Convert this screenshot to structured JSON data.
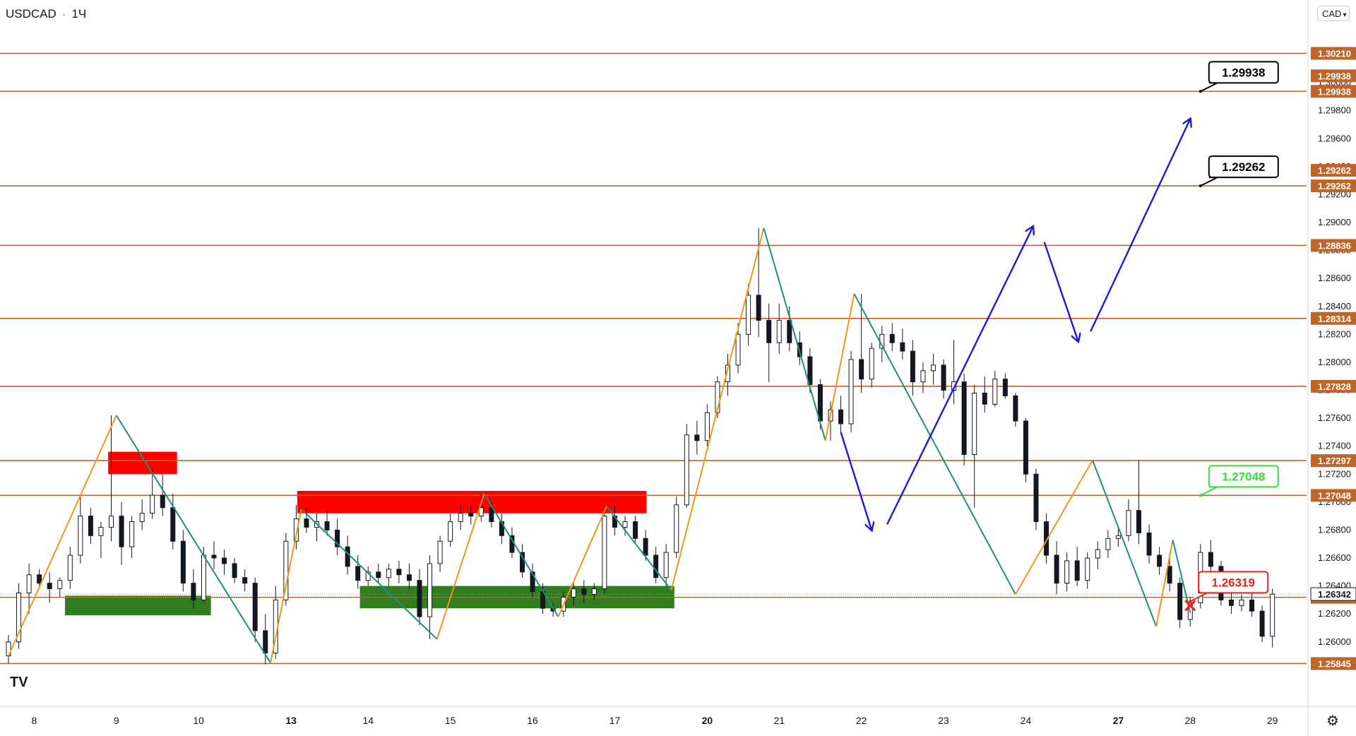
{
  "header": {
    "symbol": "USDCAD",
    "interval": "1Ч",
    "dot": "·"
  },
  "currency_button": {
    "label": "CAD",
    "icon": "chevron-down-icon"
  },
  "logo": {
    "text": "TV",
    "icon": "tradingview-logo-icon"
  },
  "settings": {
    "icon": "gear-icon"
  },
  "chart_data": {
    "type": "candlestick",
    "symbol": "USDCAD",
    "interval": "1Ч",
    "ylim": [
      1.5831,
      1.3039
    ],
    "y_axis_ticks": [
      "1.30000",
      "1.29800",
      "1.29600",
      "1.29400",
      "1.29200",
      "1.29000",
      "1.28800",
      "1.28600",
      "1.28400",
      "1.28200",
      "1.28000",
      "1.27800",
      "1.27600",
      "1.27400",
      "1.27200",
      "1.27000",
      "1.26800",
      "1.26600",
      "1.26400",
      "1.26200",
      "1.26000"
    ],
    "x_axis_ticks": [
      {
        "label": "8",
        "index": 2.5
      },
      {
        "label": "9",
        "index": 10.5
      },
      {
        "label": "10",
        "index": 18.5
      },
      {
        "label": "13",
        "index": 27.5,
        "bold": true
      },
      {
        "label": "14",
        "index": 35
      },
      {
        "label": "15",
        "index": 43
      },
      {
        "label": "16",
        "index": 51
      },
      {
        "label": "17",
        "index": 59
      },
      {
        "label": "20",
        "index": 68,
        "bold": true
      },
      {
        "label": "21",
        "index": 75
      },
      {
        "label": "22",
        "index": 83
      },
      {
        "label": "23",
        "index": 91
      },
      {
        "label": "24",
        "index": 99
      },
      {
        "label": "27",
        "index": 108,
        "bold": true
      },
      {
        "label": "28",
        "index": 115
      },
      {
        "label": "29",
        "index": 123
      }
    ],
    "price_levels": [
      1.3021,
      1.29938,
      1.29262,
      1.28836,
      1.28314,
      1.27828,
      1.27297,
      1.27048,
      1.26319,
      1.25845
    ],
    "price_level_labels": [
      "1.30210",
      "1.29938",
      "1.29262",
      "1.28836",
      "1.28314",
      "1.27828",
      "1.27297",
      "1.27048",
      "1.26319",
      "1.25845"
    ],
    "extra_axis_labels": [
      {
        "value": 1.29938,
        "label": "1.29938",
        "offset": "above"
      },
      {
        "value": 1.29262,
        "label": "1.29262",
        "offset": "above"
      },
      {
        "value": 1.26342,
        "label": "1.26342",
        "style": "current"
      }
    ],
    "level_color": "#c0652a",
    "zones": [
      {
        "color": "#ff0000",
        "x0": 9.7,
        "x1": 16.4,
        "y0": 1.2736,
        "y1": 1.272
      },
      {
        "color": "#ff0000",
        "x0": 28.1,
        "x1": 62.1,
        "y0": 1.2708,
        "y1": 1.2692
      },
      {
        "color": "#2f7d1f",
        "x0": 5.5,
        "x1": 19.7,
        "y0": 1.2633,
        "y1": 1.2619
      },
      {
        "color": "#2f7d1f",
        "x0": 34.2,
        "x1": 64.8,
        "y0": 1.264,
        "y1": 1.2624
      }
    ],
    "zigzag": {
      "color_up": "#f7931a",
      "color_down": "#1e8e7e",
      "points": [
        {
          "i": 0,
          "v": 1.259
        },
        {
          "i": 10.5,
          "v": 1.2762
        },
        {
          "i": 25.5,
          "v": 1.2585
        },
        {
          "i": 28.5,
          "v": 1.2695
        },
        {
          "i": 41.7,
          "v": 1.2602
        },
        {
          "i": 46.3,
          "v": 1.2706
        },
        {
          "i": 53.5,
          "v": 1.2618
        },
        {
          "i": 58.2,
          "v": 1.2697
        },
        {
          "i": 64.5,
          "v": 1.2637
        },
        {
          "i": 73.5,
          "v": 1.2896
        },
        {
          "i": 79.5,
          "v": 1.2744
        },
        {
          "i": 82.3,
          "v": 1.2849
        },
        {
          "i": 98,
          "v": 1.2634
        },
        {
          "i": 105.5,
          "v": 1.273
        },
        {
          "i": 111.7,
          "v": 1.2611
        },
        {
          "i": 113.3,
          "v": 1.2673
        },
        {
          "i": 115,
          "v": 1.2621
        }
      ]
    },
    "projection": {
      "color": "#1a1ad6",
      "segments": [
        [
          {
            "i": 81,
            "v": 1.275
          },
          {
            "i": 84,
            "v": 1.268
          }
        ],
        [
          {
            "i": 85.5,
            "v": 1.2684
          },
          {
            "i": 99.7,
            "v": 1.2897
          }
        ],
        [
          {
            "i": 100.8,
            "v": 1.2886
          },
          {
            "i": 104.1,
            "v": 1.2815
          }
        ],
        [
          {
            "i": 105.3,
            "v": 1.2822
          },
          {
            "i": 115,
            "v": 1.2974
          }
        ]
      ]
    },
    "callouts": [
      {
        "label": "1.29938",
        "color": "#000000",
        "bg": "#ffffff",
        "anchor_i": 116,
        "anchor_v": 1.29938
      },
      {
        "label": "1.29262",
        "color": "#000000",
        "bg": "#ffffff",
        "anchor_i": 116,
        "anchor_v": 1.29262
      },
      {
        "label": "1.27048",
        "color": "#33dd33",
        "bg": "#ffffff",
        "anchor_i": 116,
        "anchor_v": 1.27048
      },
      {
        "label": "1.26319",
        "color": "#e8201a",
        "bg": "#ffffff",
        "anchor_i": 115,
        "anchor_v": 1.2629
      }
    ],
    "marker": {
      "type": "x",
      "color": "#e8201a",
      "i": 115,
      "v": 1.2626
    },
    "candles": [
      {
        "o": 1.259,
        "h": 1.2605,
        "l": 1.2585,
        "c": 1.26
      },
      {
        "o": 1.26,
        "h": 1.2642,
        "l": 1.2595,
        "c": 1.2635
      },
      {
        "o": 1.2635,
        "h": 1.2656,
        "l": 1.262,
        "c": 1.2648
      },
      {
        "o": 1.2648,
        "h": 1.2652,
        "l": 1.2638,
        "c": 1.2642
      },
      {
        "o": 1.2642,
        "h": 1.265,
        "l": 1.2628,
        "c": 1.2638
      },
      {
        "o": 1.2638,
        "h": 1.2646,
        "l": 1.2632,
        "c": 1.2644
      },
      {
        "o": 1.2644,
        "h": 1.2668,
        "l": 1.2638,
        "c": 1.2662
      },
      {
        "o": 1.2662,
        "h": 1.2704,
        "l": 1.2656,
        "c": 1.269
      },
      {
        "o": 1.269,
        "h": 1.2696,
        "l": 1.267,
        "c": 1.2676
      },
      {
        "o": 1.2676,
        "h": 1.2686,
        "l": 1.266,
        "c": 1.2682
      },
      {
        "o": 1.2682,
        "h": 1.2762,
        "l": 1.2672,
        "c": 1.269
      },
      {
        "o": 1.269,
        "h": 1.27,
        "l": 1.2655,
        "c": 1.2668
      },
      {
        "o": 1.2668,
        "h": 1.269,
        "l": 1.266,
        "c": 1.2686
      },
      {
        "o": 1.2686,
        "h": 1.2702,
        "l": 1.268,
        "c": 1.2692
      },
      {
        "o": 1.2692,
        "h": 1.2724,
        "l": 1.2688,
        "c": 1.2705
      },
      {
        "o": 1.2705,
        "h": 1.272,
        "l": 1.269,
        "c": 1.2696
      },
      {
        "o": 1.2696,
        "h": 1.2706,
        "l": 1.2666,
        "c": 1.2672
      },
      {
        "o": 1.2672,
        "h": 1.268,
        "l": 1.2636,
        "c": 1.2642
      },
      {
        "o": 1.2642,
        "h": 1.2652,
        "l": 1.2624,
        "c": 1.263
      },
      {
        "o": 1.263,
        "h": 1.2668,
        "l": 1.2628,
        "c": 1.2662
      },
      {
        "o": 1.2662,
        "h": 1.2672,
        "l": 1.2652,
        "c": 1.266
      },
      {
        "o": 1.266,
        "h": 1.2666,
        "l": 1.2648,
        "c": 1.2656
      },
      {
        "o": 1.2656,
        "h": 1.266,
        "l": 1.2642,
        "c": 1.2646
      },
      {
        "o": 1.2646,
        "h": 1.2652,
        "l": 1.2636,
        "c": 1.2642
      },
      {
        "o": 1.2642,
        "h": 1.2646,
        "l": 1.26,
        "c": 1.2608
      },
      {
        "o": 1.2608,
        "h": 1.262,
        "l": 1.2584,
        "c": 1.2592
      },
      {
        "o": 1.2592,
        "h": 1.264,
        "l": 1.2588,
        "c": 1.263
      },
      {
        "o": 1.263,
        "h": 1.2678,
        "l": 1.2626,
        "c": 1.2672
      },
      {
        "o": 1.2672,
        "h": 1.2698,
        "l": 1.2666,
        "c": 1.2688
      },
      {
        "o": 1.2688,
        "h": 1.2696,
        "l": 1.2678,
        "c": 1.2682
      },
      {
        "o": 1.2682,
        "h": 1.2692,
        "l": 1.2672,
        "c": 1.2686
      },
      {
        "o": 1.2686,
        "h": 1.2694,
        "l": 1.2676,
        "c": 1.268
      },
      {
        "o": 1.268,
        "h": 1.2688,
        "l": 1.2662,
        "c": 1.2668
      },
      {
        "o": 1.2668,
        "h": 1.2676,
        "l": 1.2648,
        "c": 1.2654
      },
      {
        "o": 1.2654,
        "h": 1.2662,
        "l": 1.2638,
        "c": 1.2644
      },
      {
        "o": 1.2644,
        "h": 1.2654,
        "l": 1.264,
        "c": 1.265
      },
      {
        "o": 1.265,
        "h": 1.2656,
        "l": 1.2642,
        "c": 1.2646
      },
      {
        "o": 1.2646,
        "h": 1.2656,
        "l": 1.264,
        "c": 1.2652
      },
      {
        "o": 1.2652,
        "h": 1.2658,
        "l": 1.2642,
        "c": 1.2648
      },
      {
        "o": 1.2648,
        "h": 1.2656,
        "l": 1.2638,
        "c": 1.2644
      },
      {
        "o": 1.2644,
        "h": 1.2652,
        "l": 1.2612,
        "c": 1.2618
      },
      {
        "o": 1.2618,
        "h": 1.2662,
        "l": 1.2602,
        "c": 1.2656
      },
      {
        "o": 1.2656,
        "h": 1.2676,
        "l": 1.265,
        "c": 1.2672
      },
      {
        "o": 1.2672,
        "h": 1.2692,
        "l": 1.2668,
        "c": 1.2686
      },
      {
        "o": 1.2686,
        "h": 1.2698,
        "l": 1.268,
        "c": 1.2692
      },
      {
        "o": 1.2692,
        "h": 1.2698,
        "l": 1.2684,
        "c": 1.269
      },
      {
        "o": 1.269,
        "h": 1.2706,
        "l": 1.2686,
        "c": 1.2696
      },
      {
        "o": 1.2696,
        "h": 1.27,
        "l": 1.2682,
        "c": 1.2686
      },
      {
        "o": 1.2686,
        "h": 1.2692,
        "l": 1.267,
        "c": 1.2676
      },
      {
        "o": 1.2676,
        "h": 1.2682,
        "l": 1.266,
        "c": 1.2664
      },
      {
        "o": 1.2664,
        "h": 1.267,
        "l": 1.2646,
        "c": 1.265
      },
      {
        "o": 1.265,
        "h": 1.2656,
        "l": 1.2632,
        "c": 1.2636
      },
      {
        "o": 1.2636,
        "h": 1.2642,
        "l": 1.262,
        "c": 1.2624
      },
      {
        "o": 1.2624,
        "h": 1.2628,
        "l": 1.2618,
        "c": 1.2622
      },
      {
        "o": 1.2622,
        "h": 1.2636,
        "l": 1.2618,
        "c": 1.2632
      },
      {
        "o": 1.2632,
        "h": 1.2642,
        "l": 1.2626,
        "c": 1.2638
      },
      {
        "o": 1.2638,
        "h": 1.2644,
        "l": 1.2628,
        "c": 1.2634
      },
      {
        "o": 1.2634,
        "h": 1.2642,
        "l": 1.263,
        "c": 1.2638
      },
      {
        "o": 1.2638,
        "h": 1.2696,
        "l": 1.2634,
        "c": 1.269
      },
      {
        "o": 1.269,
        "h": 1.2698,
        "l": 1.2676,
        "c": 1.2682
      },
      {
        "o": 1.2682,
        "h": 1.269,
        "l": 1.2676,
        "c": 1.2686
      },
      {
        "o": 1.2686,
        "h": 1.269,
        "l": 1.267,
        "c": 1.2674
      },
      {
        "o": 1.2674,
        "h": 1.268,
        "l": 1.2658,
        "c": 1.2662
      },
      {
        "o": 1.2662,
        "h": 1.2668,
        "l": 1.2642,
        "c": 1.2646
      },
      {
        "o": 1.2646,
        "h": 1.267,
        "l": 1.264,
        "c": 1.2664
      },
      {
        "o": 1.2664,
        "h": 1.2704,
        "l": 1.266,
        "c": 1.2698
      },
      {
        "o": 1.2698,
        "h": 1.2756,
        "l": 1.2696,
        "c": 1.2748
      },
      {
        "o": 1.2748,
        "h": 1.2758,
        "l": 1.2734,
        "c": 1.2744
      },
      {
        "o": 1.2744,
        "h": 1.277,
        "l": 1.274,
        "c": 1.2764
      },
      {
        "o": 1.2764,
        "h": 1.279,
        "l": 1.276,
        "c": 1.2786
      },
      {
        "o": 1.2786,
        "h": 1.2806,
        "l": 1.2776,
        "c": 1.2798
      },
      {
        "o": 1.2798,
        "h": 1.2828,
        "l": 1.2792,
        "c": 1.282
      },
      {
        "o": 1.282,
        "h": 1.2856,
        "l": 1.2812,
        "c": 1.2848
      },
      {
        "o": 1.2848,
        "h": 1.2896,
        "l": 1.2818,
        "c": 1.283
      },
      {
        "o": 1.283,
        "h": 1.2842,
        "l": 1.2786,
        "c": 1.2814
      },
      {
        "o": 1.2814,
        "h": 1.2842,
        "l": 1.2806,
        "c": 1.283
      },
      {
        "o": 1.283,
        "h": 1.284,
        "l": 1.2808,
        "c": 1.2814
      },
      {
        "o": 1.2814,
        "h": 1.2822,
        "l": 1.2798,
        "c": 1.2804
      },
      {
        "o": 1.2804,
        "h": 1.281,
        "l": 1.2778,
        "c": 1.2784
      },
      {
        "o": 1.2784,
        "h": 1.2788,
        "l": 1.2752,
        "c": 1.2758
      },
      {
        "o": 1.2758,
        "h": 1.2772,
        "l": 1.2744,
        "c": 1.2766
      },
      {
        "o": 1.2766,
        "h": 1.2776,
        "l": 1.275,
        "c": 1.2756
      },
      {
        "o": 1.2756,
        "h": 1.2808,
        "l": 1.275,
        "c": 1.2802
      },
      {
        "o": 1.2802,
        "h": 1.2849,
        "l": 1.2778,
        "c": 1.2788
      },
      {
        "o": 1.2788,
        "h": 1.2814,
        "l": 1.2782,
        "c": 1.281
      },
      {
        "o": 1.281,
        "h": 1.2826,
        "l": 1.28,
        "c": 1.282
      },
      {
        "o": 1.282,
        "h": 1.2828,
        "l": 1.2808,
        "c": 1.2814
      },
      {
        "o": 1.2814,
        "h": 1.2824,
        "l": 1.2802,
        "c": 1.2808
      },
      {
        "o": 1.2808,
        "h": 1.2816,
        "l": 1.2776,
        "c": 1.2786
      },
      {
        "o": 1.2786,
        "h": 1.28,
        "l": 1.2778,
        "c": 1.2794
      },
      {
        "o": 1.2794,
        "h": 1.2806,
        "l": 1.2784,
        "c": 1.2798
      },
      {
        "o": 1.2798,
        "h": 1.2802,
        "l": 1.2774,
        "c": 1.278
      },
      {
        "o": 1.278,
        "h": 1.2816,
        "l": 1.277,
        "c": 1.2786
      },
      {
        "o": 1.2786,
        "h": 1.2792,
        "l": 1.2726,
        "c": 1.2734
      },
      {
        "o": 1.2734,
        "h": 1.2784,
        "l": 1.2696,
        "c": 1.2778
      },
      {
        "o": 1.2778,
        "h": 1.279,
        "l": 1.2764,
        "c": 1.277
      },
      {
        "o": 1.277,
        "h": 1.2794,
        "l": 1.2768,
        "c": 1.2788
      },
      {
        "o": 1.2788,
        "h": 1.2792,
        "l": 1.2774,
        "c": 1.2776
      },
      {
        "o": 1.2776,
        "h": 1.2778,
        "l": 1.2754,
        "c": 1.2758
      },
      {
        "o": 1.2758,
        "h": 1.276,
        "l": 1.2714,
        "c": 1.272
      },
      {
        "o": 1.272,
        "h": 1.2724,
        "l": 1.268,
        "c": 1.2686
      },
      {
        "o": 1.2686,
        "h": 1.2692,
        "l": 1.2656,
        "c": 1.2662
      },
      {
        "o": 1.2662,
        "h": 1.2672,
        "l": 1.2634,
        "c": 1.2642
      },
      {
        "o": 1.2642,
        "h": 1.2664,
        "l": 1.2636,
        "c": 1.2658
      },
      {
        "o": 1.2658,
        "h": 1.2668,
        "l": 1.264,
        "c": 1.2644
      },
      {
        "o": 1.2644,
        "h": 1.2664,
        "l": 1.2638,
        "c": 1.266
      },
      {
        "o": 1.266,
        "h": 1.2672,
        "l": 1.2652,
        "c": 1.2666
      },
      {
        "o": 1.2666,
        "h": 1.268,
        "l": 1.266,
        "c": 1.2674
      },
      {
        "o": 1.2674,
        "h": 1.2682,
        "l": 1.2668,
        "c": 1.2676
      },
      {
        "o": 1.2676,
        "h": 1.2702,
        "l": 1.2672,
        "c": 1.2694
      },
      {
        "o": 1.2694,
        "h": 1.273,
        "l": 1.267,
        "c": 1.2678
      },
      {
        "o": 1.2678,
        "h": 1.2684,
        "l": 1.2656,
        "c": 1.2662
      },
      {
        "o": 1.2662,
        "h": 1.2668,
        "l": 1.2648,
        "c": 1.2654
      },
      {
        "o": 1.2654,
        "h": 1.266,
        "l": 1.2636,
        "c": 1.2642
      },
      {
        "o": 1.2642,
        "h": 1.2646,
        "l": 1.261,
        "c": 1.2616
      },
      {
        "o": 1.2616,
        "h": 1.2632,
        "l": 1.2611,
        "c": 1.2628
      },
      {
        "o": 1.2628,
        "h": 1.267,
        "l": 1.2624,
        "c": 1.2664
      },
      {
        "o": 1.2664,
        "h": 1.2673,
        "l": 1.2648,
        "c": 1.2654
      },
      {
        "o": 1.2654,
        "h": 1.2658,
        "l": 1.2626,
        "c": 1.263
      },
      {
        "o": 1.263,
        "h": 1.2638,
        "l": 1.262,
        "c": 1.2626
      },
      {
        "o": 1.2626,
        "h": 1.2634,
        "l": 1.2622,
        "c": 1.263
      },
      {
        "o": 1.263,
        "h": 1.2636,
        "l": 1.2618,
        "c": 1.2622
      },
      {
        "o": 1.2622,
        "h": 1.2626,
        "l": 1.26,
        "c": 1.2604
      },
      {
        "o": 1.2604,
        "h": 1.2638,
        "l": 1.2596,
        "c": 1.26342
      }
    ]
  }
}
